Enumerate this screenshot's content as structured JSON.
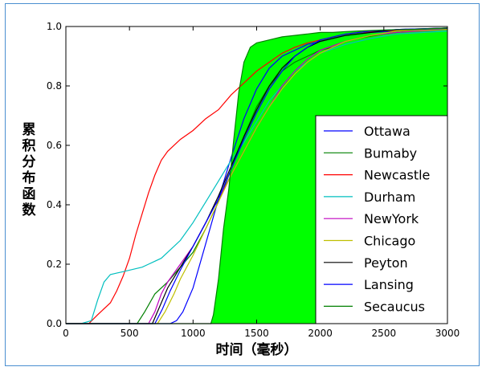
{
  "chart_data": {
    "type": "line",
    "xlabel": "时间（毫秒）",
    "ylabel": "累积分布函数",
    "xlim": [
      0,
      3000
    ],
    "ylim": [
      0,
      1.0
    ],
    "xticks": [
      "0",
      "500",
      "1000",
      "1500",
      "2000",
      "2500",
      "3000"
    ],
    "yticks": [
      "0.0",
      "0.2",
      "0.4",
      "0.6",
      "0.8",
      "1.0"
    ],
    "grid": false,
    "legend_position": "lower-right",
    "series": [
      {
        "name": "Ottawa",
        "color": "#0000ff",
        "x": [
          0,
          820,
          870,
          920,
          1000,
          1100,
          1200,
          1300,
          1400,
          1500,
          1600,
          1700,
          1800,
          1900,
          2000,
          2100,
          2200,
          2300,
          2400,
          2600,
          2800,
          3000
        ],
        "y": [
          0,
          0.0,
          0.01,
          0.04,
          0.12,
          0.27,
          0.42,
          0.56,
          0.69,
          0.79,
          0.86,
          0.9,
          0.92,
          0.94,
          0.95,
          0.96,
          0.97,
          0.975,
          0.98,
          0.985,
          0.99,
          0.992
        ]
      },
      {
        "name": "Bumaby",
        "color": "#008000",
        "x": [
          0,
          560,
          620,
          700,
          800,
          900,
          1000,
          1100,
          1200,
          1300,
          1400,
          1500,
          1600,
          1700,
          1800,
          1900,
          2000,
          2100,
          2200,
          2300,
          2500,
          2700,
          3000
        ],
        "y": [
          0,
          0.0,
          0.04,
          0.1,
          0.14,
          0.19,
          0.24,
          0.32,
          0.41,
          0.52,
          0.63,
          0.73,
          0.8,
          0.85,
          0.88,
          0.9,
          0.92,
          0.93,
          0.95,
          0.96,
          0.975,
          0.985,
          0.99
        ]
      },
      {
        "name": "Newcastle",
        "color": "#ff0000",
        "x": [
          0,
          180,
          250,
          300,
          350,
          400,
          450,
          500,
          550,
          600,
          650,
          700,
          750,
          800,
          900,
          1000,
          1100,
          1200,
          1300,
          1400,
          1500,
          1600,
          1700,
          1800,
          1900,
          2000,
          2100,
          2200,
          2300,
          2500,
          2700,
          3000
        ],
        "y": [
          0,
          0.0,
          0.03,
          0.05,
          0.07,
          0.11,
          0.16,
          0.22,
          0.3,
          0.37,
          0.44,
          0.5,
          0.55,
          0.58,
          0.62,
          0.65,
          0.69,
          0.72,
          0.77,
          0.81,
          0.85,
          0.88,
          0.91,
          0.93,
          0.945,
          0.955,
          0.965,
          0.975,
          0.98,
          0.985,
          0.99,
          0.995
        ]
      },
      {
        "name": "Durham",
        "color": "#00bfbf",
        "x": [
          0,
          120,
          200,
          250,
          300,
          350,
          400,
          450,
          500,
          550,
          600,
          650,
          700,
          750,
          800,
          900,
          1000,
          1100,
          1200,
          1300,
          1400,
          1500,
          1600,
          1700,
          1800,
          1900,
          2000,
          2200,
          2400,
          2600,
          3000
        ],
        "y": [
          0,
          0.0,
          0.01,
          0.08,
          0.14,
          0.165,
          0.17,
          0.175,
          0.18,
          0.185,
          0.19,
          0.2,
          0.21,
          0.22,
          0.24,
          0.28,
          0.34,
          0.41,
          0.48,
          0.55,
          0.61,
          0.68,
          0.75,
          0.8,
          0.85,
          0.88,
          0.91,
          0.94,
          0.96,
          0.975,
          0.985
        ]
      },
      {
        "name": "NewYork",
        "color": "#bf00bf",
        "x": [
          0,
          650,
          700,
          750,
          800,
          900,
          1000,
          1100,
          1200,
          1300,
          1400,
          1500,
          1600,
          1700,
          1800,
          1900,
          2000,
          2200,
          2400,
          2600,
          3000
        ],
        "y": [
          0,
          0.0,
          0.04,
          0.1,
          0.14,
          0.2,
          0.26,
          0.34,
          0.42,
          0.5,
          0.58,
          0.66,
          0.73,
          0.8,
          0.85,
          0.89,
          0.92,
          0.95,
          0.97,
          0.98,
          0.99
        ]
      },
      {
        "name": "Chicago",
        "color": "#bfbf00",
        "x": [
          0,
          720,
          780,
          850,
          900,
          1000,
          1100,
          1200,
          1300,
          1400,
          1500,
          1600,
          1700,
          1800,
          1900,
          2000,
          2200,
          2400,
          2600,
          3000
        ],
        "y": [
          0,
          0.0,
          0.04,
          0.1,
          0.15,
          0.23,
          0.32,
          0.41,
          0.5,
          0.58,
          0.66,
          0.73,
          0.79,
          0.84,
          0.88,
          0.91,
          0.95,
          0.97,
          0.985,
          0.99
        ]
      },
      {
        "name": "Peyton",
        "color": "#000000",
        "x": [
          0,
          680,
          740,
          800,
          900,
          1000,
          1100,
          1200,
          1300,
          1400,
          1500,
          1600,
          1700,
          1800,
          1900,
          2000,
          2200,
          2400,
          2600,
          3000
        ],
        "y": [
          0,
          0.0,
          0.06,
          0.12,
          0.19,
          0.26,
          0.34,
          0.43,
          0.53,
          0.63,
          0.72,
          0.8,
          0.86,
          0.9,
          0.93,
          0.95,
          0.97,
          0.98,
          0.99,
          0.995
        ]
      },
      {
        "name": "Lansing",
        "color": "#0000ff",
        "x": [
          0,
          700,
          760,
          820,
          900,
          1000,
          1100,
          1200,
          1300,
          1400,
          1500,
          1600,
          1700,
          1800,
          1900,
          2000,
          2200,
          2400,
          2600,
          3000
        ],
        "y": [
          0,
          0.0,
          0.05,
          0.11,
          0.18,
          0.26,
          0.34,
          0.42,
          0.52,
          0.62,
          0.71,
          0.79,
          0.85,
          0.9,
          0.93,
          0.955,
          0.975,
          0.985,
          0.99,
          0.995
        ]
      },
      {
        "name": "Secaucus",
        "color": "#008000",
        "fill": "#00ff00",
        "x": [
          0,
          1140,
          1160,
          1200,
          1240,
          1280,
          1320,
          1360,
          1400,
          1450,
          1500,
          1600,
          1700,
          1800,
          1900,
          2000,
          2100,
          2200,
          2300,
          2500,
          2700,
          3000
        ],
        "y": [
          0,
          0.0,
          0.03,
          0.15,
          0.32,
          0.45,
          0.62,
          0.78,
          0.88,
          0.93,
          0.945,
          0.955,
          0.965,
          0.97,
          0.975,
          0.98,
          0.98,
          0.983,
          0.985,
          0.988,
          0.99,
          0.995
        ]
      }
    ]
  }
}
